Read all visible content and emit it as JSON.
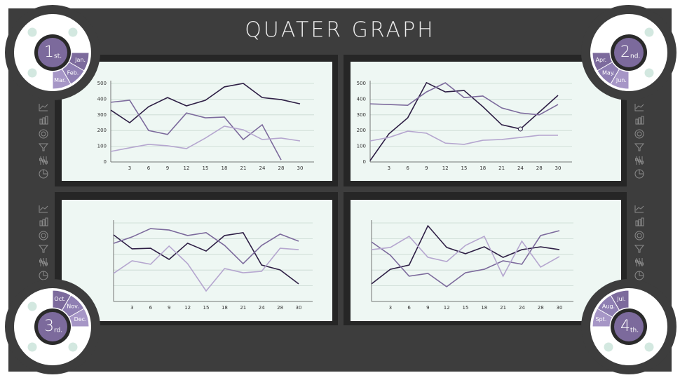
{
  "title": "QUATER GRAPH",
  "quarters": [
    {
      "number": "1",
      "suffix": "st.",
      "months": [
        "Jan.",
        "Feb.",
        "Mar."
      ]
    },
    {
      "number": "2",
      "suffix": "nd.",
      "months": [
        "Apr.",
        "May.",
        "Jun."
      ]
    },
    {
      "number": "3",
      "suffix": "rd.",
      "months": [
        "Oct.",
        "Nov.",
        "Dec."
      ]
    },
    {
      "number": "4",
      "suffix": "th.",
      "months": [
        "Jul.",
        "Aug.",
        "Spt."
      ]
    }
  ],
  "chart_data": [
    {
      "type": "line",
      "categories": [
        null,
        "3",
        "6",
        "9",
        "12",
        "15",
        "18",
        "21",
        "24",
        "28",
        "30"
      ],
      "ylim": [
        0,
        500
      ],
      "yticks": [
        0,
        100,
        200,
        300,
        400,
        500
      ],
      "ytick_labels": true,
      "grid": true,
      "series": [
        {
          "color": "#2e1f45",
          "values": [
            330,
            250,
            352,
            410,
            357,
            393,
            478,
            500,
            410,
            397,
            370
          ]
        },
        {
          "color": "#7c6a9c",
          "values": [
            380,
            393,
            200,
            175,
            312,
            281,
            286,
            143,
            237,
            13,
            null
          ]
        },
        {
          "color": "#b5a6cf",
          "values": [
            67,
            90,
            112,
            103,
            85,
            152,
            228,
            205,
            143,
            152,
            134
          ]
        }
      ]
    },
    {
      "type": "line",
      "categories": [
        null,
        "3",
        "6",
        "9",
        "12",
        "15",
        "18",
        "21",
        "24",
        "28",
        "30"
      ],
      "ylim": [
        0,
        500
      ],
      "yticks": [
        0,
        100,
        200,
        300,
        400,
        500
      ],
      "ytick_labels": true,
      "grid": true,
      "series": [
        {
          "color": "#2e1f45",
          "values": [
            9,
            179,
            281,
            505,
            446,
            455,
            352,
            237,
            210,
            317,
            424
          ],
          "markers": [
            8
          ]
        },
        {
          "color": "#7c6a9c",
          "values": [
            370,
            366,
            361,
            446,
            504,
            410,
            420,
            344,
            312,
            300,
            366
          ]
        },
        {
          "color": "#b5a6cf",
          "values": [
            134,
            156,
            196,
            183,
            120,
            112,
            138,
            143,
            156,
            170,
            170
          ]
        }
      ]
    },
    {
      "type": "line",
      "categories": [
        null,
        "3",
        "6",
        "9",
        "12",
        "15",
        "18",
        "21",
        "24",
        "28",
        "30"
      ],
      "ylim": [
        0,
        500
      ],
      "yticks": [
        0,
        100,
        200,
        300,
        400,
        500
      ],
      "ytick_labels": false,
      "grid": true,
      "series": [
        {
          "color": "#2e1f45",
          "values": [
            424,
            335,
            339,
            268,
            371,
            321,
            420,
            438,
            232,
            201,
            112
          ]
        },
        {
          "color": "#7c6a9c",
          "values": [
            370,
            411,
            464,
            455,
            420,
            438,
            357,
            241,
            357,
            429,
            384
          ]
        },
        {
          "color": "#b5a6cf",
          "values": [
            179,
            259,
            237,
            353,
            241,
            67,
            210,
            183,
            192,
            339,
            330
          ]
        }
      ]
    },
    {
      "type": "line",
      "categories": [
        null,
        "3",
        "6",
        "9",
        "12",
        "15",
        "18",
        "21",
        "24",
        "28",
        "30"
      ],
      "ylim": [
        0,
        500
      ],
      "yticks": [
        0,
        100,
        200,
        300,
        400,
        500
      ],
      "ytick_labels": false,
      "grid": true,
      "series": [
        {
          "color": "#2e1f45",
          "values": [
            112,
            205,
            232,
            482,
            344,
            304,
            348,
            281,
            330,
            348,
            330
          ]
        },
        {
          "color": "#7c6a9c",
          "values": [
            379,
            295,
            161,
            179,
            94,
            183,
            205,
            259,
            237,
            420,
            451
          ]
        },
        {
          "color": "#b5a6cf",
          "values": [
            330,
            344,
            415,
            281,
            254,
            357,
            415,
            161,
            384,
            219,
            286
          ]
        }
      ]
    }
  ]
}
